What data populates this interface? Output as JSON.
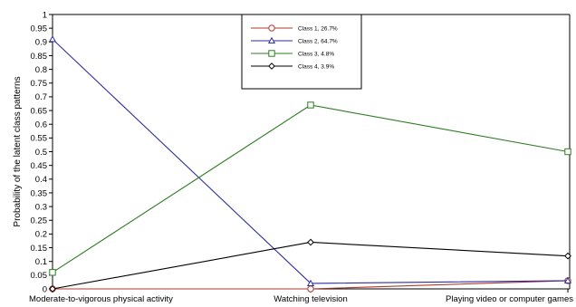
{
  "chart_data": {
    "type": "line",
    "categories": [
      "Moderate-to-vigorous physical activity",
      "Watching television",
      "Playing video or computer games"
    ],
    "ylabel": "Probability of the latent class patterns",
    "xlabel": "",
    "ylim": [
      0,
      1
    ],
    "yticks": [
      "0",
      "0.05",
      "0.1",
      "0.15",
      "0.2",
      "0.25",
      "0.3",
      "0.35",
      "0.4",
      "0.45",
      "0.5",
      "0.55",
      "0.6",
      "0.65",
      "0.7",
      "0.75",
      "0.8",
      "0.85",
      "0.9",
      "0.95",
      "1"
    ],
    "grid": false,
    "legend_position": "top-center",
    "series": [
      {
        "name": "Class 1, 26.7%",
        "color": "#b03a2e",
        "marker": "circle",
        "values": [
          0.0,
          0.0,
          0.03
        ]
      },
      {
        "name": "Class 2, 64.7%",
        "color": "#2e2e9e",
        "marker": "triangle",
        "values": [
          0.91,
          0.02,
          0.03
        ]
      },
      {
        "name": "Class 3, 4.8%",
        "color": "#2e7d23",
        "marker": "square",
        "values": [
          0.06,
          0.67,
          0.5
        ]
      },
      {
        "name": "Class 4, 3.9%",
        "color": "#000000",
        "marker": "diamond",
        "values": [
          0.0,
          0.17,
          0.12
        ]
      }
    ]
  }
}
